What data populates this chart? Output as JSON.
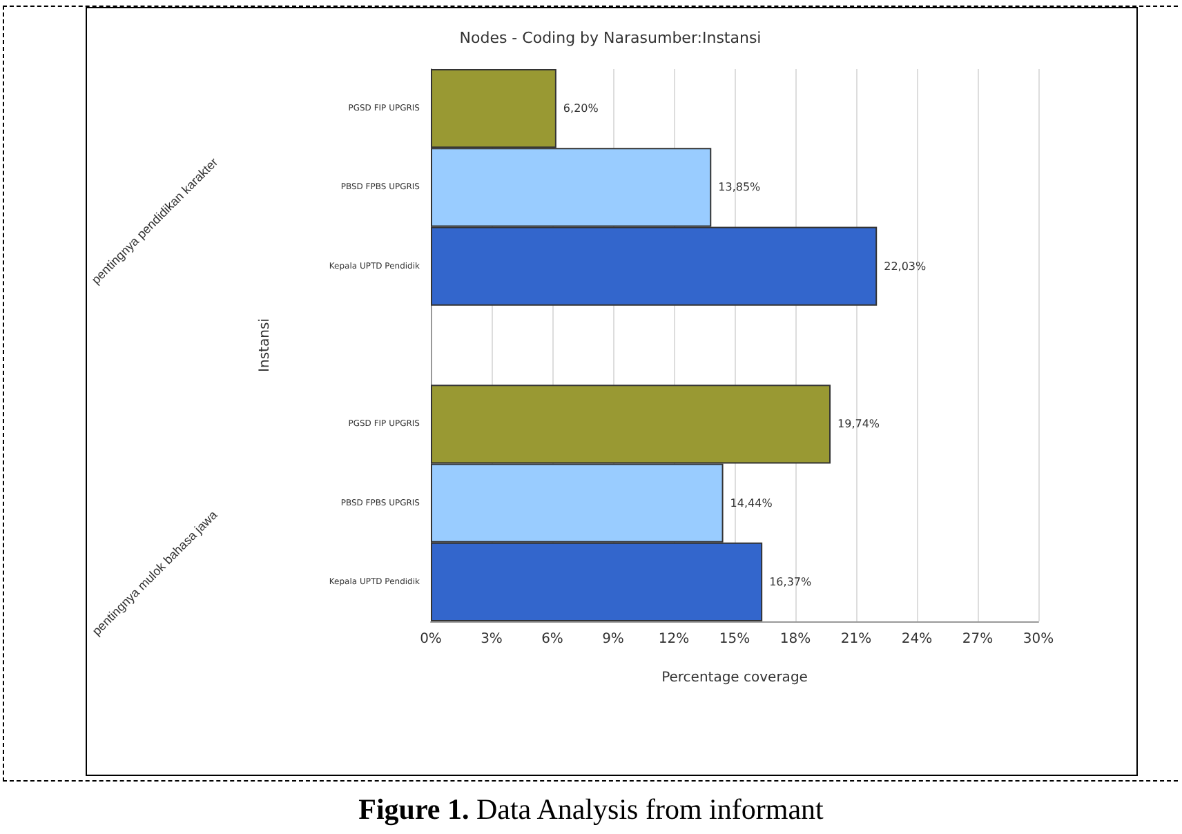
{
  "chart_data": {
    "type": "bar",
    "orientation": "horizontal",
    "title": "Nodes - Coding by Narasumber:Instansi",
    "xlabel": "Percentage coverage",
    "ylabel": "Instansi",
    "categories": [
      "PGSD FIP UPGRIS",
      "PBSD FPBS UPGRIS",
      "Kepala UPTD Pendidik",
      null,
      "PGSD FIP UPGRIS",
      "PBSD FPBS UPGRIS",
      "Kepala UPTD Pendidik"
    ],
    "values": [
      6.2,
      13.85,
      22.03,
      null,
      19.74,
      14.44,
      16.37
    ],
    "colors": [
      "#999933",
      "#99ccff",
      "#3366cc",
      null,
      "#999933",
      "#99ccff",
      "#3366cc"
    ],
    "value_labels": [
      "6,20%",
      "13,85%",
      "22,03%",
      null,
      "19,74%",
      "14,44%",
      "16,37%"
    ],
    "xlim": [
      0,
      30
    ],
    "xticks": [
      {
        "value": 0,
        "label": "0%"
      },
      {
        "value": 3,
        "label": "3%"
      },
      {
        "value": 6,
        "label": "6%"
      },
      {
        "value": 9,
        "label": "9%"
      },
      {
        "value": 12,
        "label": "12%"
      },
      {
        "value": 15,
        "label": "15%"
      },
      {
        "value": 18,
        "label": "18%"
      },
      {
        "value": 21,
        "label": "21%"
      },
      {
        "value": 24,
        "label": "24%"
      },
      {
        "value": 27,
        "label": "27%"
      },
      {
        "value": 30,
        "label": "30%"
      }
    ],
    "grid": "x",
    "annotations": [
      "pentingnya pendidikan karakter",
      "pentingnya mulok bahasa jawa",
      "Figure 1. Data Analysis from informant"
    ]
  }
}
